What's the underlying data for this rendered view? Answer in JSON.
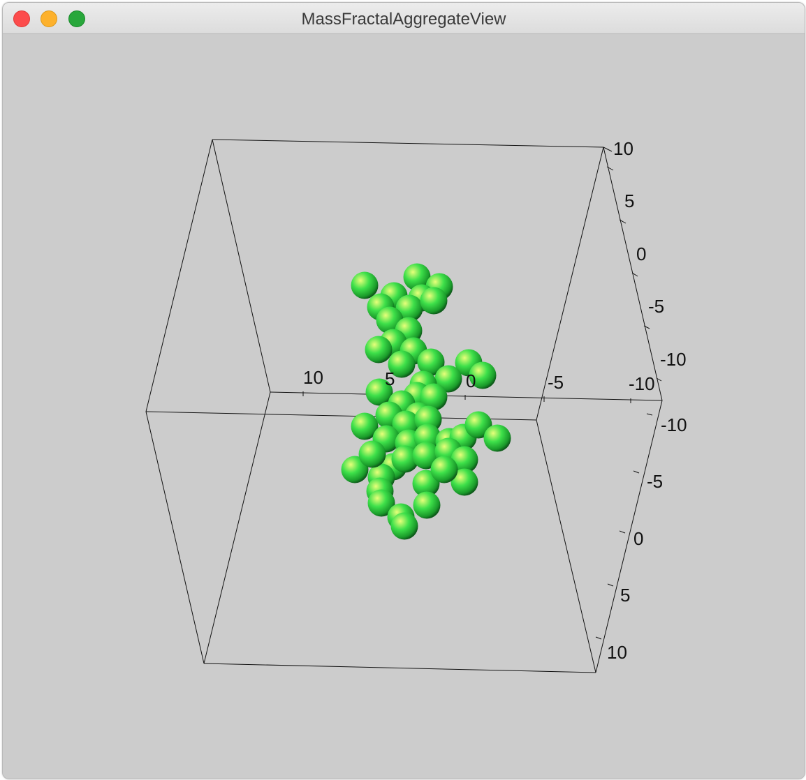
{
  "window": {
    "title": "MassFractalAggregateView",
    "controls": [
      "close",
      "minimize",
      "zoom"
    ]
  },
  "colors": {
    "sphere": "#3ee04a",
    "sphere_highlight": "#e8ff7a",
    "sphere_shadow": "#0e5a1a",
    "background": "#cccccc"
  },
  "axes": {
    "x_ticks": [
      "10",
      "5",
      "0",
      "-5",
      "-10"
    ],
    "y_ticks_upper": [
      "10",
      "5",
      "0",
      "-5",
      "-10"
    ],
    "y_ticks_lower": [
      "-10",
      "-5",
      "0",
      "5",
      "10"
    ]
  }
}
